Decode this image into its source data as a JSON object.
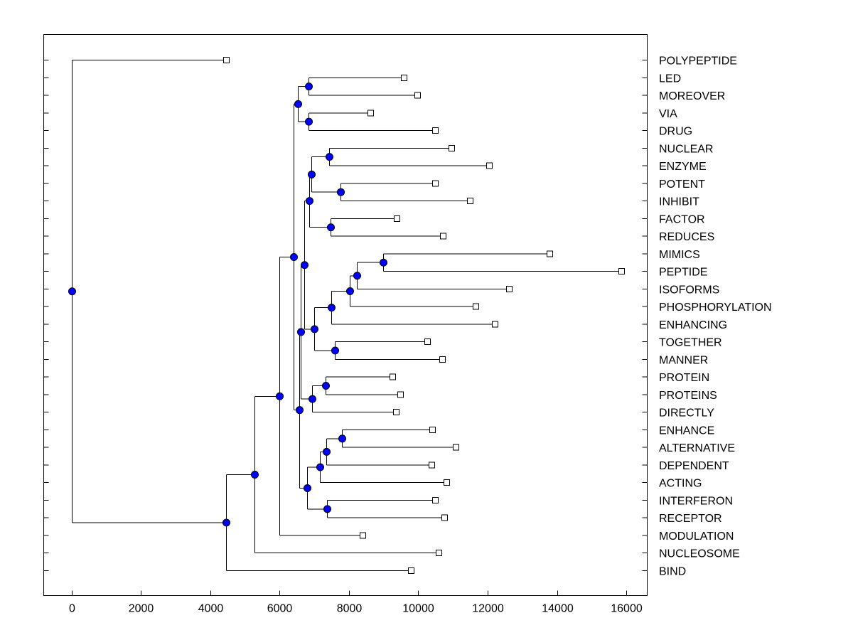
{
  "chart_data": {
    "type": "dendrogram",
    "xticks": [
      0,
      2000,
      4000,
      6000,
      8000,
      10000,
      12000,
      14000,
      16000
    ],
    "xlim": [
      -800,
      16600
    ],
    "leaves": [
      {
        "label": "POLYPEPTIDE",
        "x": 4450
      },
      {
        "label": "LED",
        "x": 9580
      },
      {
        "label": "MOREOVER",
        "x": 9980
      },
      {
        "label": "VIA",
        "x": 8620
      },
      {
        "label": "DRUG",
        "x": 10480
      },
      {
        "label": "NUCLEAR",
        "x": 10950
      },
      {
        "label": "ENZYME",
        "x": 12050
      },
      {
        "label": "POTENT",
        "x": 10480
      },
      {
        "label": "INHIBIT",
        "x": 11480
      },
      {
        "label": "FACTOR",
        "x": 9380
      },
      {
        "label": "REDUCES",
        "x": 10700
      },
      {
        "label": "MIMICS",
        "x": 13780
      },
      {
        "label": "PEPTIDE",
        "x": 15850
      },
      {
        "label": "ISOFORMS",
        "x": 12620
      },
      {
        "label": "PHOSPHORYLATION",
        "x": 11650
      },
      {
        "label": "ENHANCING",
        "x": 12200
      },
      {
        "label": "TOGETHER",
        "x": 10250
      },
      {
        "label": "MANNER",
        "x": 10680
      },
      {
        "label": "PROTEIN",
        "x": 9250
      },
      {
        "label": "PROTEINS",
        "x": 9480
      },
      {
        "label": "DIRECTLY",
        "x": 9350
      },
      {
        "label": "ENHANCE",
        "x": 10400
      },
      {
        "label": "ALTERNATIVE",
        "x": 11080
      },
      {
        "label": "DEPENDENT",
        "x": 10380
      },
      {
        "label": "ACTING",
        "x": 10800
      },
      {
        "label": "INTERFERON",
        "x": 10480
      },
      {
        "label": "RECEPTOR",
        "x": 10750
      },
      {
        "label": "MODULATION",
        "x": 8400
      },
      {
        "label": "NUCLEOSOME",
        "x": 10580
      },
      {
        "label": "BIND",
        "x": 9780
      }
    ],
    "nodes": [
      {
        "x": 6830,
        "children": [
          1,
          2
        ]
      },
      {
        "x": 6830,
        "children": [
          3,
          4
        ]
      },
      {
        "x": 6520,
        "children": [
          "n0",
          "n1"
        ]
      },
      {
        "x": 7430,
        "children": [
          5,
          6
        ]
      },
      {
        "x": 7750,
        "children": [
          7,
          8
        ]
      },
      {
        "x": 6920,
        "children": [
          "n3",
          "n4"
        ]
      },
      {
        "x": 7460,
        "children": [
          9,
          10
        ]
      },
      {
        "x": 6850,
        "children": [
          "n5",
          "n6"
        ]
      },
      {
        "x": 8980,
        "children": [
          11,
          12
        ]
      },
      {
        "x": 8230,
        "children": [
          "n8",
          13
        ]
      },
      {
        "x": 8020,
        "children": [
          "n9",
          14
        ]
      },
      {
        "x": 7480,
        "children": [
          "n10",
          15
        ]
      },
      {
        "x": 7600,
        "children": [
          16,
          17
        ]
      },
      {
        "x": 7000,
        "children": [
          "n11",
          "n12"
        ]
      },
      {
        "x": 6720,
        "children": [
          "n7",
          "n13"
        ]
      },
      {
        "x": 7330,
        "children": [
          18,
          19
        ]
      },
      {
        "x": 6930,
        "children": [
          "n15",
          20
        ]
      },
      {
        "x": 6600,
        "children": [
          "n14",
          "n16"
        ]
      },
      {
        "x": 7800,
        "children": [
          21,
          22
        ]
      },
      {
        "x": 7350,
        "children": [
          "n18",
          23
        ]
      },
      {
        "x": 7170,
        "children": [
          "n19",
          24
        ]
      },
      {
        "x": 7370,
        "children": [
          25,
          26
        ]
      },
      {
        "x": 6800,
        "children": [
          "n20",
          "n21"
        ]
      },
      {
        "x": 6560,
        "children": [
          "n17",
          "n22"
        ]
      },
      {
        "x": 6400,
        "children": [
          "n2",
          "n23"
        ]
      },
      {
        "x": 6000,
        "children": [
          "n24",
          27
        ]
      },
      {
        "x": 5270,
        "children": [
          "n25",
          28
        ]
      },
      {
        "x": 4450,
        "children": [
          "n26",
          29
        ]
      },
      {
        "x": 0,
        "children": [
          0,
          "n27"
        ]
      }
    ]
  }
}
